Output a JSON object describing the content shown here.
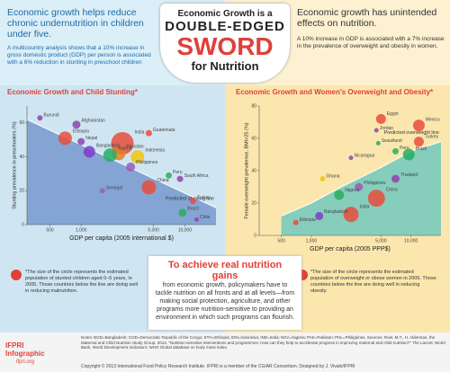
{
  "header": {
    "left_headline": "Economic growth helps reduce chronic undernutrition in children under five.",
    "left_text": "A multicountry analysis shows that a 10% increase in gross domestic product (GDP) per person is associated with a 6% reduction in stunting in preschool children",
    "title_line1": "Economic Growth is a",
    "title_line2": "DOUBLE-EDGED",
    "title_line3": "SWORD",
    "title_line4": "for Nutrition",
    "right_headline": "Economic growth has unintended effects on nutrition.",
    "right_text": "A 10% increase in GDP is associated with a 7% increase in the prevalence of overweight and obesity in women."
  },
  "chart_data": [
    {
      "type": "scatter",
      "title": "Economic Growth and Child Stunting*",
      "y_label": "Stunting prevalence in preschoolers (%)",
      "x_label": "GDP per capita (2005 international $)",
      "xscale": "log",
      "xlim": [
        300,
        20000
      ],
      "xticks": [
        500,
        {
          "value": 1000,
          "label": "1,000"
        },
        {
          "value": 5000,
          "label": "5,000"
        },
        {
          "value": 10000,
          "label": "10,000"
        }
      ],
      "ylim": [
        0,
        70
      ],
      "yticks": [
        0,
        20,
        40,
        60
      ],
      "background": "#cfe6f2",
      "area_color": "#6b8fc9",
      "trend": {
        "label": "Predicted stunting line",
        "x": [
          300,
          20000
        ],
        "y": [
          62,
          10
        ]
      },
      "points": [
        {
          "label": "Burundi",
          "x": 400,
          "y": 63,
          "size": 3,
          "color": "#8e44ad"
        },
        {
          "label": "Afghanistan",
          "x": 900,
          "y": 59,
          "size": 6,
          "color": "#8e44ad"
        },
        {
          "label": "Guatemala",
          "x": 4500,
          "y": 54,
          "size": 4,
          "color": "#e74c3c"
        },
        {
          "label": "Nepal",
          "x": 1000,
          "y": 49,
          "size": 5,
          "color": "#8e44ad"
        },
        {
          "label": "Ethiopia",
          "x": 700,
          "y": 51,
          "size": 12,
          "color": "#e74c3c"
        },
        {
          "label": "India",
          "x": 2500,
          "y": 48,
          "size": 22,
          "color": "#e74c3c"
        },
        {
          "label": "Bangladesh",
          "x": 1200,
          "y": 43,
          "size": 10,
          "color": "#7d3cc8"
        },
        {
          "label": "Pakistan",
          "x": 2300,
          "y": 42,
          "size": 12,
          "color": "#e67e22"
        },
        {
          "label": "Nigeria",
          "x": 1900,
          "y": 41,
          "size": 12,
          "color": "#27ae60"
        },
        {
          "label": "Indonesia",
          "x": 3500,
          "y": 40,
          "size": 12,
          "color": "#f1c40f"
        },
        {
          "label": "Philippines",
          "x": 3000,
          "y": 34,
          "size": 7,
          "color": "#9b59b6"
        },
        {
          "label": "Peru",
          "x": 7000,
          "y": 29,
          "size": 4,
          "color": "#27ae60"
        },
        {
          "label": "South Africa",
          "x": 9000,
          "y": 27,
          "size": 4,
          "color": "#8e44ad"
        },
        {
          "label": "China",
          "x": 4500,
          "y": 22,
          "size": 13,
          "color": "#e74c3c"
        },
        {
          "label": "Senegal",
          "x": 1600,
          "y": 20,
          "size": 3,
          "color": "#9b59b6"
        },
        {
          "label": "Turkey",
          "x": 12000,
          "y": 14,
          "size": 4,
          "color": "#e74c3c"
        },
        {
          "label": "Brazil",
          "x": 9500,
          "y": 7,
          "size": 6,
          "color": "#27ae60"
        },
        {
          "label": "Chile",
          "x": 13000,
          "y": 3,
          "size": 2,
          "color": "#8e44ad"
        }
      ],
      "note": "*The size of the circle represents the estimated population of stunted children aged 0–5 years, in 2005. Those countries below the line are doing well in reducing malnutrition."
    },
    {
      "type": "scatter",
      "title": "Economic Growth and Women's Overweight and Obesity*",
      "y_label": "Female overweight prevalence, BMI>25 (%)",
      "x_label": "GDP per capita (2005 PPP$)",
      "xscale": "log",
      "xlim": [
        300,
        20000
      ],
      "xticks": [
        500,
        {
          "value": 1000,
          "label": "1,000"
        },
        {
          "value": 5000,
          "label": "5,000"
        },
        {
          "value": 10000,
          "label": "10,000"
        }
      ],
      "ylim": [
        0,
        80
      ],
      "yticks": [
        0,
        20,
        40,
        60,
        80
      ],
      "background": "#fbe7ae",
      "area_color": "#5fc4c0",
      "trend": {
        "label": "Predicted overweight line",
        "x": [
          500,
          1000,
          2000,
          5000,
          10000,
          20000
        ],
        "y": [
          12,
          20,
          30,
          42,
          52,
          58
        ]
      },
      "points": [
        {
          "label": "Egypt",
          "x": 5000,
          "y": 72,
          "size": 8,
          "color": "#e74c3c"
        },
        {
          "label": "Mexico",
          "x": 12000,
          "y": 68,
          "size": 10,
          "color": "#e74c3c"
        },
        {
          "label": "Jordan",
          "x": 4500,
          "y": 65,
          "size": 2,
          "color": "#8e44ad"
        },
        {
          "label": "Turkey",
          "x": 12000,
          "y": 58,
          "size": 8,
          "color": "#e74c3c"
        },
        {
          "label": "Swaziland",
          "x": 4700,
          "y": 57,
          "size": 2,
          "color": "#27ae60"
        },
        {
          "label": "Peru",
          "x": 7000,
          "y": 52,
          "size": 4,
          "color": "#27ae60"
        },
        {
          "label": "Brazil",
          "x": 9500,
          "y": 50,
          "size": 10,
          "color": "#27ae60"
        },
        {
          "label": "Nicaragua",
          "x": 2500,
          "y": 48,
          "size": 2,
          "color": "#8e44ad"
        },
        {
          "label": "Ghana",
          "x": 1300,
          "y": 35,
          "size": 3,
          "color": "#f1c40f"
        },
        {
          "label": "Thailand",
          "x": 7000,
          "y": 35,
          "size": 6,
          "color": "#8e44ad"
        },
        {
          "label": "Philippines",
          "x": 3000,
          "y": 30,
          "size": 6,
          "color": "#9b59b6"
        },
        {
          "label": "Nigeria",
          "x": 1900,
          "y": 25,
          "size": 8,
          "color": "#27ae60"
        },
        {
          "label": "China",
          "x": 4500,
          "y": 23,
          "size": 16,
          "color": "#e74c3c"
        },
        {
          "label": "India",
          "x": 2500,
          "y": 13,
          "size": 14,
          "color": "#e74c3c"
        },
        {
          "label": "Bangladesh",
          "x": 1200,
          "y": 12,
          "size": 6,
          "color": "#7d3cc8"
        },
        {
          "label": "Ethiopia",
          "x": 700,
          "y": 8,
          "size": 3,
          "color": "#e74c3c"
        }
      ],
      "note": "*The size of the circle represents the estimated population of overweight or obese women in 2005. Those countries below the line are doing well in reducing obesity."
    }
  ],
  "callout": {
    "heading": "To achieve real nutrition gains",
    "text": "from economic growth, policymakers have to tackle nutrition on all fronts and at all levels—from making social protection, agriculture, and other programs more nutrition-sensitive to providing an environment in which such programs can flourish."
  },
  "footer": {
    "logo": "IFPRI Infographic",
    "site": "ifpri.org",
    "notes": "Notes: BGD=Bangladesh; COD=Democratic Republic of the Congo; ETH=Ethiopia; IDN=Indonesia; IND=India; NGA=Nigeria; PAK=Pakistan; PHL=Philippines. Sources: Ruel, M.T., H. Alderman, the Maternal and Child Nutrition Study Group. 2013. \"Nutrition-sensitive interventions and programmes: How can they help to accelerate progress in improving maternal and child nutrition?\" The Lancet; World Bank, World Development Indicators; WHO Global database on body mass index.",
    "copyright": "Copyright © 2013 International Food Policy Research Institute. IFPRI is a member of the CGIAR Consortium. Designed by J. Vivalo/IFPRI"
  }
}
